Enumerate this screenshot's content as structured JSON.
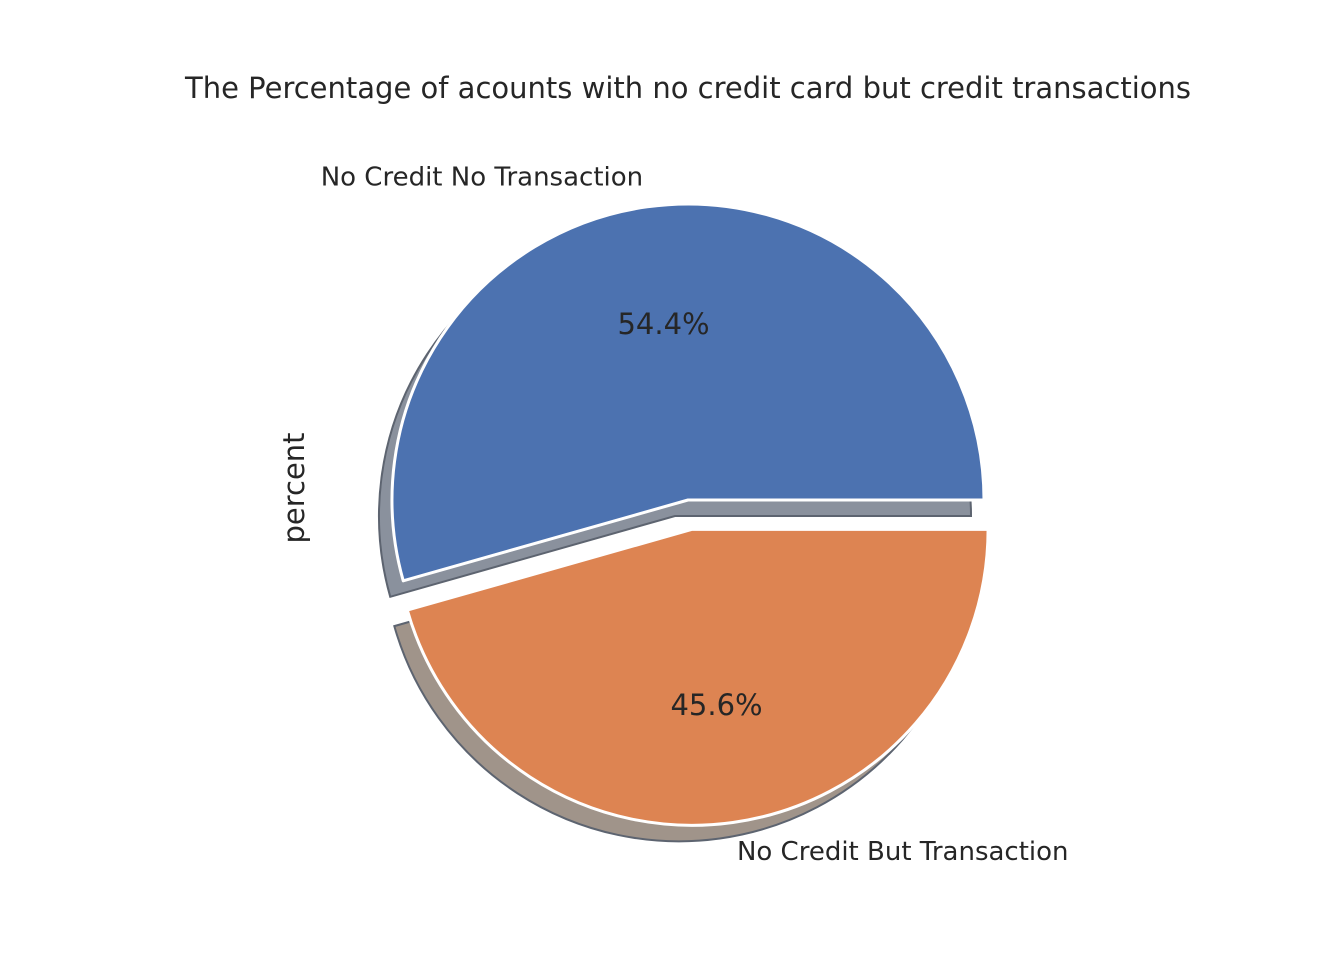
{
  "chart_data": {
    "type": "pie",
    "title": "The Percentage of acounts with no credit card but credit transactions",
    "ylabel": "percent",
    "slices": [
      {
        "label": "No Credit No Transaction",
        "value": 54.4,
        "pct_label": "54.4%",
        "color": "#4c72b0",
        "explode": 0.0,
        "shadow_color": "#8a919d"
      },
      {
        "label": "No Credit But Transaction",
        "value": 45.6,
        "pct_label": "45.6%",
        "color": "#dd8452",
        "explode": 0.1,
        "shadow_color": "#a0948a"
      }
    ],
    "start_angle": 0,
    "direction": "counterclockwise",
    "shadow": true,
    "edge_color": "#ffffff"
  }
}
